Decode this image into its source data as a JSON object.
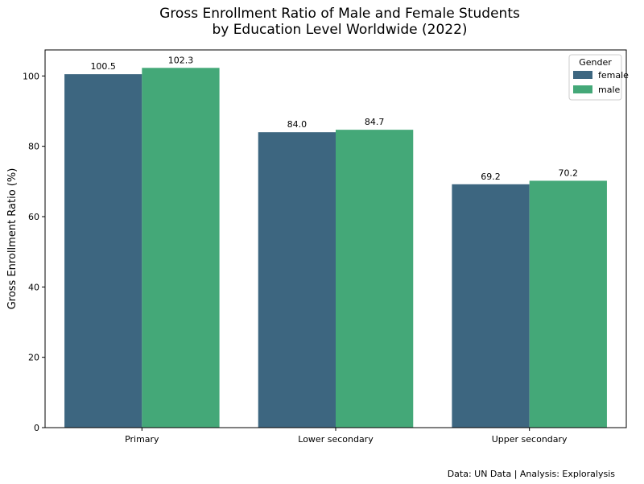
{
  "chart_data": {
    "type": "bar",
    "title_lines": [
      "Gross Enrollment Ratio of Male and Female Students",
      "by Education Level Worldwide (2022)"
    ],
    "xlabel": "",
    "ylabel": "Gross Enrollment Ratio (%)",
    "categories": [
      "Primary",
      "Lower secondary",
      "Upper secondary"
    ],
    "series": [
      {
        "name": "female",
        "values": [
          100.5,
          84.0,
          69.2
        ],
        "color": "#3d6680"
      },
      {
        "name": "male",
        "values": [
          102.3,
          84.7,
          70.2
        ],
        "color": "#44a878"
      }
    ],
    "value_labels": [
      [
        "100.5",
        "84.0",
        "69.2"
      ],
      [
        "102.3",
        "84.7",
        "70.2"
      ]
    ],
    "ylim": [
      0,
      107.4
    ],
    "yticks": [
      0,
      20,
      40,
      60,
      80,
      100
    ],
    "legend": {
      "title": "Gender",
      "placement": "top-right"
    },
    "grid": false
  },
  "caption": "Data: UN Data | Analysis: Exploralysis"
}
